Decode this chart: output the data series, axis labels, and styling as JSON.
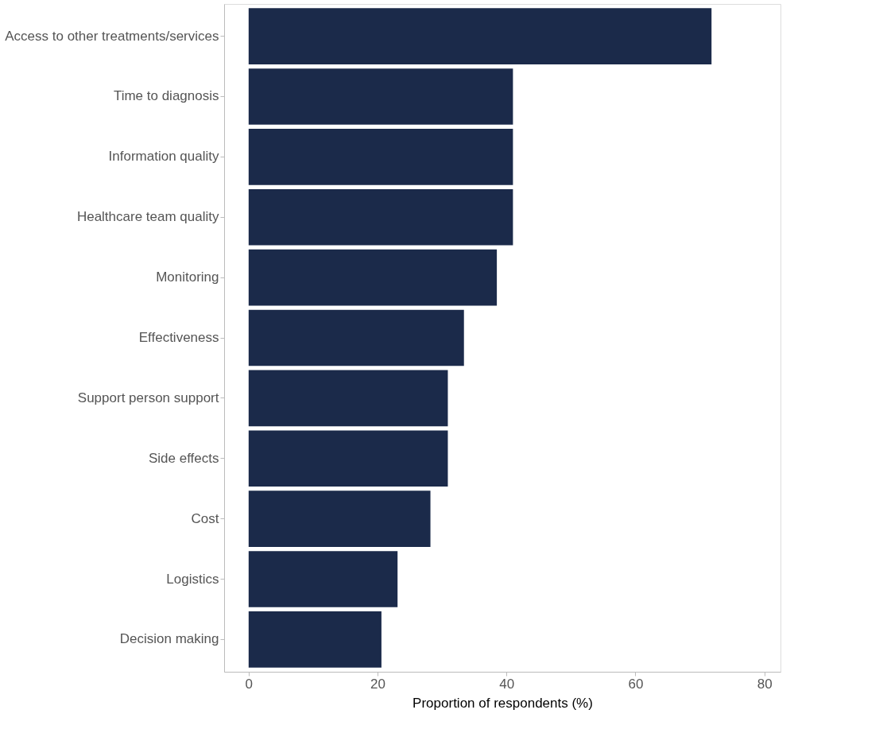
{
  "chart_data": {
    "type": "bar",
    "orientation": "horizontal",
    "xlabel": "Proportion of respondents (%)",
    "categories": [
      "Access to other treatments/services",
      "Time to diagnosis",
      "Information quality",
      "Healthcare team quality",
      "Monitoring",
      "Effectiveness",
      "Support person support",
      "Side effects",
      "Cost",
      "Logistics",
      "Decision making"
    ],
    "values": [
      71.8,
      41.0,
      41.0,
      41.0,
      38.5,
      33.4,
      30.9,
      30.9,
      28.2,
      23.1,
      20.6
    ],
    "color": "#1b2a4a",
    "xlim": [
      -3.8,
      82.5
    ],
    "xticks": [
      0,
      20,
      40,
      60,
      80
    ],
    "grid": false
  }
}
